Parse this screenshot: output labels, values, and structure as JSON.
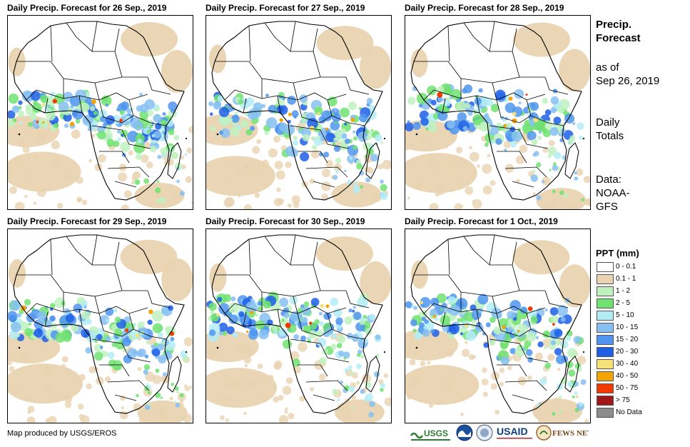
{
  "panels": [
    {
      "title": "Daily Precip. Forecast for 26  Sep., 2019"
    },
    {
      "title": "Daily Precip. Forecast for 27  Sep., 2019"
    },
    {
      "title": "Daily Precip. Forecast for 28  Sep., 2019"
    },
    {
      "title": "Daily Precip. Forecast for 29  Sep., 2019"
    },
    {
      "title": "Daily Precip. Forecast for 30  Sep., 2019"
    },
    {
      "title": "Daily Precip. Forecast for 1 Oct., 2019"
    }
  ],
  "sidebar": {
    "title_line1": "Precip.",
    "title_line2": "Forecast",
    "asof_line1": "as of",
    "asof_line2": "Sep 26, 2019",
    "daily_line1": "Daily",
    "daily_line2": "Totals",
    "data_line1": "Data:",
    "data_line2": "NOAA-",
    "data_line3": "GFS"
  },
  "legend": {
    "title": "PPT (mm)",
    "items": [
      {
        "label": "0 - 0.1",
        "color": "#ffffff"
      },
      {
        "label": "0.1 - 1",
        "color": "#e9d3b0"
      },
      {
        "label": "1 - 2",
        "color": "#bff2bf"
      },
      {
        "label": "2 - 5",
        "color": "#6fe26f"
      },
      {
        "label": "5 - 10",
        "color": "#b4ecf6"
      },
      {
        "label": "10 - 15",
        "color": "#86bff2"
      },
      {
        "label": "15 - 20",
        "color": "#4f95ef"
      },
      {
        "label": "20 - 30",
        "color": "#1d5fe6"
      },
      {
        "label": "30 - 40",
        "color": "#f7e27a"
      },
      {
        "label": "40 - 50",
        "color": "#f5a300"
      },
      {
        "label": "50 - 75",
        "color": "#f03a00"
      },
      {
        "label": "> 75",
        "color": "#a01818"
      },
      {
        "label": "No Data",
        "color": "#8c8c8c"
      }
    ]
  },
  "footer": {
    "credit": "Map produced by USGS/EROS",
    "logos": [
      "USGS",
      "NOAA",
      "USAID",
      "FEWS NET"
    ]
  }
}
